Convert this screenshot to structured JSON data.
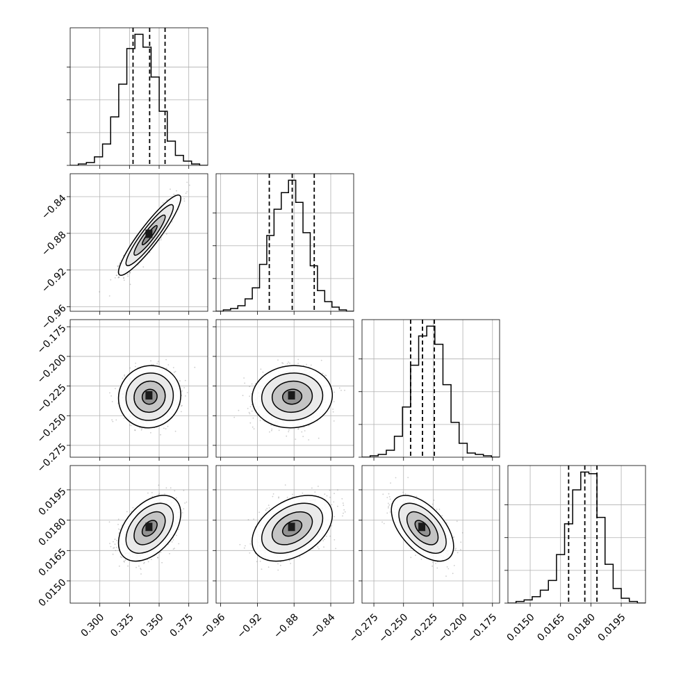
{
  "chart_data": {
    "type": "corner",
    "grid": true,
    "params": [
      {
        "ticks": [
          0.3,
          0.325,
          0.35,
          0.375
        ],
        "tick_labels": [
          "0.300",
          "0.325",
          "0.350",
          "0.375"
        ],
        "range": [
          0.275,
          0.391
        ],
        "mean": 0.342,
        "sd": 0.0105,
        "quantiles": [
          0.328,
          0.342,
          0.355
        ],
        "hist": [
          0,
          1,
          2,
          6,
          15,
          34,
          57,
          82,
          92,
          83,
          62,
          38,
          17,
          7,
          3,
          1,
          0
        ]
      },
      {
        "ticks": [
          -0.96,
          -0.92,
          -0.88,
          -0.84
        ],
        "tick_labels": [
          "−0.96",
          "−0.92",
          "−0.88",
          "−0.84"
        ],
        "range": [
          -0.965,
          -0.815
        ],
        "mean": -0.882,
        "sd": 0.0175,
        "quantiles": [
          -0.907,
          -0.882,
          -0.858
        ],
        "hist": [
          0,
          1,
          2,
          4,
          9,
          17,
          34,
          55,
          74,
          86,
          95,
          79,
          57,
          33,
          15,
          7,
          3,
          1,
          0
        ]
      },
      {
        "ticks": [
          -0.275,
          -0.25,
          -0.225,
          -0.2,
          -0.175
        ],
        "tick_labels": [
          "−0.275",
          "−0.250",
          "−0.225",
          "−0.200",
          "−0.175"
        ],
        "range": [
          -0.285,
          -0.169
        ],
        "mean": -0.234,
        "sd": 0.0105,
        "quantiles": [
          -0.244,
          -0.234,
          -0.224
        ],
        "hist": [
          0,
          1,
          2,
          5,
          15,
          36,
          66,
          87,
          94,
          81,
          52,
          25,
          10,
          3,
          2,
          1,
          0
        ]
      },
      {
        "ticks": [
          0.015,
          0.0165,
          0.018,
          0.0195
        ],
        "tick_labels": [
          "0.0150",
          "0.0165",
          "0.0180",
          "0.0195"
        ],
        "range": [
          0.0139,
          0.0207
        ],
        "mean": 0.0176,
        "sd": 0.00065,
        "quantiles": [
          0.0169,
          0.0177,
          0.0183
        ],
        "hist": [
          0,
          1,
          2,
          4,
          8,
          14,
          30,
          49,
          70,
          81,
          80,
          53,
          24,
          9,
          3,
          1,
          0
        ]
      }
    ],
    "correlations": [
      [
        1.0,
        0.92,
        0.05,
        0.45
      ],
      [
        0.92,
        1.0,
        0.05,
        0.4
      ],
      [
        0.05,
        0.05,
        1.0,
        -0.55
      ],
      [
        0.45,
        0.4,
        -0.55,
        1.0
      ]
    ],
    "colors": {
      "line": "#000000",
      "grid": "#b0b0b0",
      "scatter": "#6e6e6e"
    }
  }
}
